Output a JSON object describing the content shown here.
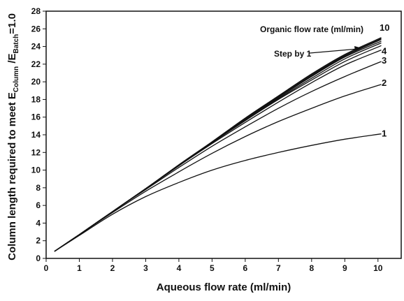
{
  "chart_data": {
    "type": "line",
    "xlabel": "Aqueous flow rate (ml/min)",
    "ylabel": {
      "prefix": "Column length required to meet E",
      "sub1": "Column",
      "mid": " /E",
      "sub2": "Batch",
      "suffix": "=1.0"
    },
    "xlim": [
      0,
      10.7
    ],
    "ylim": [
      0,
      28
    ],
    "xticks": [
      "0",
      "1",
      "2",
      "3",
      "4",
      "5",
      "6",
      "7",
      "8",
      "9",
      "10"
    ],
    "yticks": [
      "0",
      "2",
      "4",
      "6",
      "8",
      "10",
      "12",
      "14",
      "16",
      "18",
      "20",
      "22",
      "24",
      "26",
      "28"
    ],
    "annotations": {
      "legend_title": "Organic flow rate (ml/min)",
      "step_note": "Step by 1"
    },
    "x": [
      0.25,
      1,
      2,
      3,
      4,
      5,
      6,
      7,
      8,
      9,
      10.1
    ],
    "series": [
      {
        "label": "1",
        "values": [
          0.8,
          2.6,
          5.0,
          7.0,
          8.6,
          10.0,
          11.1,
          12.0,
          12.8,
          13.5,
          14.1
        ]
      },
      {
        "label": "2",
        "values": [
          0.8,
          2.7,
          5.2,
          7.6,
          9.8,
          11.9,
          13.8,
          15.5,
          17.0,
          18.4,
          19.7
        ]
      },
      {
        "label": "3",
        "values": [
          0.8,
          2.7,
          5.3,
          7.8,
          10.3,
          12.7,
          14.9,
          17.0,
          18.9,
          20.6,
          22.3
        ]
      },
      {
        "label": "4",
        "values": [
          0.8,
          2.7,
          5.3,
          7.9,
          10.5,
          13.0,
          15.4,
          17.7,
          19.9,
          21.9,
          23.6
        ]
      },
      {
        "label": "",
        "values": [
          0.8,
          2.7,
          5.3,
          7.9,
          10.5,
          13.1,
          15.6,
          18.0,
          20.2,
          22.3,
          24.1
        ]
      },
      {
        "label": "",
        "values": [
          0.8,
          2.7,
          5.3,
          7.9,
          10.5,
          13.1,
          15.7,
          18.1,
          20.4,
          22.6,
          24.4
        ]
      },
      {
        "label": "",
        "values": [
          0.8,
          2.7,
          5.3,
          7.9,
          10.5,
          13.2,
          15.8,
          18.2,
          20.6,
          22.8,
          24.6
        ]
      },
      {
        "label": "",
        "values": [
          0.8,
          2.7,
          5.3,
          7.9,
          10.6,
          13.2,
          15.8,
          18.3,
          20.7,
          22.9,
          24.8
        ]
      },
      {
        "label": "",
        "values": [
          0.8,
          2.7,
          5.3,
          7.9,
          10.6,
          13.2,
          15.8,
          18.4,
          20.8,
          23.0,
          24.9
        ]
      },
      {
        "label": "10",
        "values": [
          0.8,
          2.7,
          5.3,
          7.9,
          10.6,
          13.2,
          15.9,
          18.4,
          20.9,
          23.1,
          25.0
        ]
      }
    ]
  }
}
